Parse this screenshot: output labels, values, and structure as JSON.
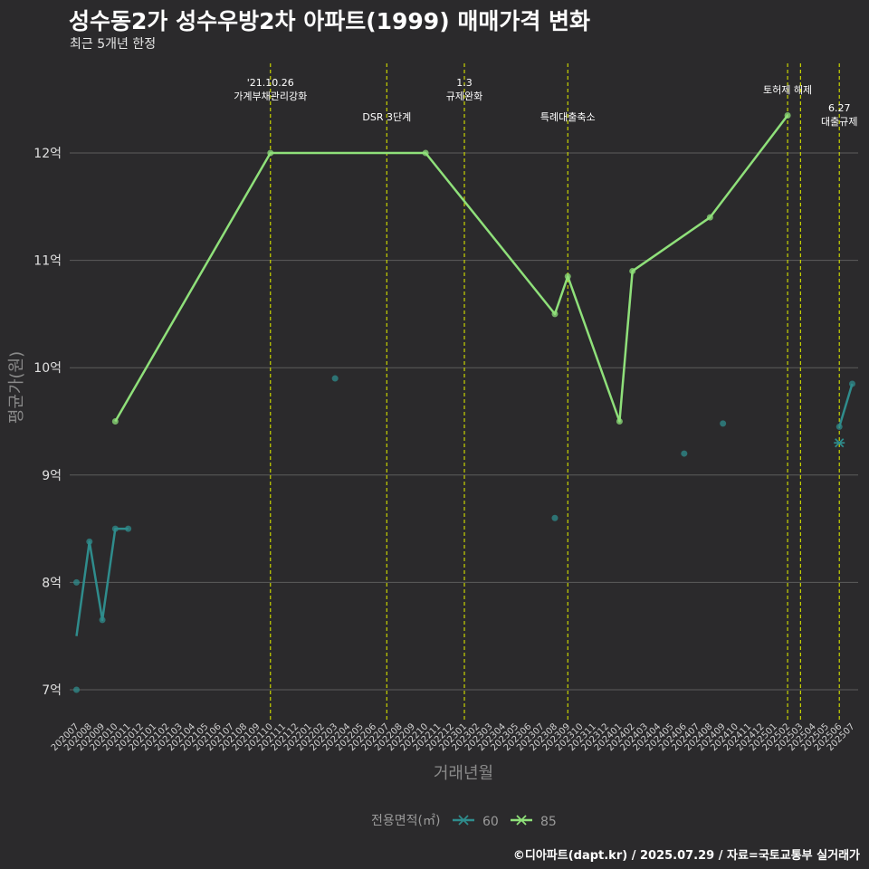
{
  "chart_data": {
    "type": "line",
    "title": "성수동2가 성수우방2차 아파트(1999) 매매가격 변화",
    "subtitle": "최근 5개년 한정",
    "caption": "©디아파트(dapt.kr) / 2025.07.29 / 자료=국토교통부 실거래가",
    "xlabel": "거래년월",
    "ylabel": "평균가(원)",
    "ylim": [
      6.75,
      12.85
    ],
    "y_ticks": [
      7,
      8,
      9,
      10,
      11,
      12
    ],
    "y_tick_labels": [
      "7억",
      "8억",
      "9억",
      "10억",
      "11억",
      "12억"
    ],
    "months": [
      "202007",
      "202008",
      "202009",
      "202010",
      "202011",
      "202012",
      "202101",
      "202102",
      "202103",
      "202104",
      "202105",
      "202106",
      "202107",
      "202108",
      "202109",
      "202110",
      "202111",
      "202112",
      "202201",
      "202202",
      "202203",
      "202204",
      "202205",
      "202206",
      "202207",
      "202208",
      "202209",
      "202210",
      "202211",
      "202212",
      "202301",
      "202302",
      "202303",
      "202304",
      "202305",
      "202306",
      "202307",
      "202308",
      "202309",
      "202310",
      "202311",
      "202312",
      "202401",
      "202402",
      "202403",
      "202404",
      "202405",
      "202406",
      "202407",
      "202408",
      "202409",
      "202410",
      "202411",
      "202412",
      "202501",
      "202502",
      "202503",
      "202504",
      "202505",
      "202506",
      "202507"
    ],
    "series": [
      {
        "name": "60",
        "color": "#2f8c8c",
        "line": [
          [
            "202007",
            7.5
          ],
          [
            "202008",
            8.38
          ],
          [
            "202009",
            7.65
          ],
          [
            "202010",
            8.5
          ],
          [
            "202011",
            8.5
          ]
        ],
        "points": [
          [
            "202007",
            8.0
          ],
          [
            "202007",
            7.0
          ],
          [
            "202008",
            8.38
          ],
          [
            "202009",
            7.65
          ],
          [
            "202010",
            8.5
          ],
          [
            "202011",
            8.5
          ],
          [
            "202203",
            9.9
          ],
          [
            "202308",
            8.6
          ],
          [
            "202406",
            9.2
          ],
          [
            "202409",
            9.48
          ],
          [
            "202506",
            9.45
          ],
          [
            "202507",
            9.85
          ]
        ],
        "line2": [
          [
            "202506",
            9.45
          ],
          [
            "202507",
            9.85
          ]
        ],
        "marker": [
          [
            "202506",
            9.3
          ]
        ]
      },
      {
        "name": "85",
        "color": "#8fe07a",
        "line": [
          [
            "202010",
            9.5
          ],
          [
            "202110",
            12.0
          ],
          [
            "202210",
            12.0
          ],
          [
            "202308",
            10.5
          ],
          [
            "202309",
            10.85
          ],
          [
            "202401",
            9.5
          ],
          [
            "202402",
            10.9
          ],
          [
            "202408",
            11.4
          ],
          [
            "202502",
            12.35
          ]
        ],
        "points": [
          [
            "202010",
            9.5
          ],
          [
            "202110",
            12.0
          ],
          [
            "202210",
            12.0
          ],
          [
            "202308",
            10.5
          ],
          [
            "202309",
            10.85
          ],
          [
            "202401",
            9.5
          ],
          [
            "202402",
            10.9
          ],
          [
            "202408",
            11.4
          ],
          [
            "202502",
            12.35
          ]
        ]
      }
    ],
    "events": [
      {
        "month": "202110",
        "lines": [
          "'21.10.26",
          "가계부채관리강화"
        ],
        "level": 1
      },
      {
        "month": "202207",
        "lines": [
          "DSR 3단계"
        ],
        "level": 2
      },
      {
        "month": "202301",
        "lines": [
          "1.3",
          "규제완화"
        ],
        "level": 1
      },
      {
        "month": "202309",
        "lines": [
          "특례대출축소"
        ],
        "level": 2
      },
      {
        "month": "202502",
        "lines": [
          "토허제 해제"
        ],
        "level": 1
      },
      {
        "month": "202503",
        "lines": [],
        "level": 1
      },
      {
        "month": "202506",
        "lines": [
          "6.27",
          "대출규제"
        ],
        "level": 3
      }
    ],
    "legend": {
      "title": "전용면적(㎡)",
      "items": [
        "60",
        "85"
      ],
      "position": "bottom"
    }
  }
}
